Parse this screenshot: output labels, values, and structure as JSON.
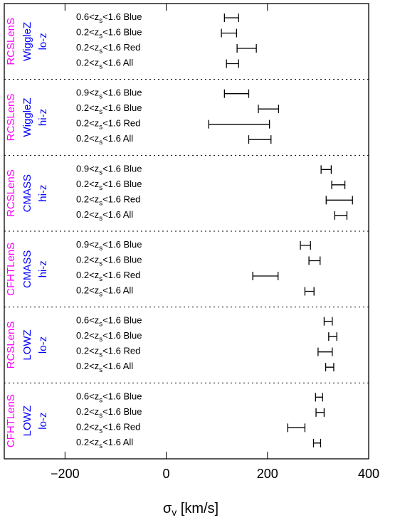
{
  "chart_data": {
    "type": "errorbar",
    "xlim": [
      -320,
      400
    ],
    "xticks": [
      {
        "value": -200,
        "label": "−200"
      },
      0,
      200,
      400
    ],
    "xlabel": {
      "symbol": "σ",
      "sub": "v",
      "rest": " [km/s]"
    },
    "group_colors": [
      "#ff00ff",
      "#0000ff",
      "#0000ff"
    ],
    "color": "#000000",
    "panels": [
      {
        "group": [
          "RCSLenS",
          "WiggleZ",
          "lo-z"
        ],
        "categories": [
          {
            "lead": "0.6<z",
            "sub": "s",
            "rest": "<1.6 Blue"
          },
          {
            "lead": "0.2<z",
            "sub": "s",
            "rest": "<1.6 Blue"
          },
          {
            "lead": "0.2<z",
            "sub": "s",
            "rest": "<1.6 Red"
          },
          {
            "lead": "0.2<z",
            "sub": "s",
            "rest": "<1.6 All"
          }
        ],
        "values": [
          129,
          124,
          159,
          131
        ],
        "errors": [
          14,
          15,
          19,
          12
        ]
      },
      {
        "group": [
          "RCSLenS",
          "WiggleZ",
          "hi-z"
        ],
        "categories": [
          {
            "lead": "0.9<z",
            "sub": "s",
            "rest": "<1.6 Blue"
          },
          {
            "lead": "0.2<z",
            "sub": "s",
            "rest": "<1.6 Blue"
          },
          {
            "lead": "0.2<z",
            "sub": "s",
            "rest": "<1.6 Red"
          },
          {
            "lead": "0.2<z",
            "sub": "s",
            "rest": "<1.6 All"
          }
        ],
        "values": [
          139,
          202,
          144,
          185
        ],
        "errors": [
          24,
          20,
          60,
          22
        ]
      },
      {
        "group": [
          "RCSLenS",
          "CMASS",
          "hi-z"
        ],
        "categories": [
          {
            "lead": "0.9<z",
            "sub": "s",
            "rest": "<1.6 Blue"
          },
          {
            "lead": "0.2<z",
            "sub": "s",
            "rest": "<1.6 Blue"
          },
          {
            "lead": "0.2<z",
            "sub": "s",
            "rest": "<1.6 Red"
          },
          {
            "lead": "0.2<z",
            "sub": "s",
            "rest": "<1.6 All"
          }
        ],
        "values": [
          316,
          340,
          342,
          345
        ],
        "errors": [
          10,
          13,
          26,
          12
        ]
      },
      {
        "group": [
          "CFHTLenS",
          "CMASS",
          "hi-z"
        ],
        "categories": [
          {
            "lead": "0.9<z",
            "sub": "s",
            "rest": "<1.6 Blue"
          },
          {
            "lead": "0.2<z",
            "sub": "s",
            "rest": "<1.6 Blue"
          },
          {
            "lead": "0.2<z",
            "sub": "s",
            "rest": "<1.6 Red"
          },
          {
            "lead": "0.2<z",
            "sub": "s",
            "rest": "<1.6 All"
          }
        ],
        "values": [
          275,
          293,
          196,
          283
        ],
        "errors": [
          10,
          11,
          25,
          9
        ]
      },
      {
        "group": [
          "RCSLenS",
          "LOWZ",
          "lo-z"
        ],
        "categories": [
          {
            "lead": "0.6<z",
            "sub": "s",
            "rest": "<1.6 Blue"
          },
          {
            "lead": "0.2<z",
            "sub": "s",
            "rest": "<1.6 Blue"
          },
          {
            "lead": "0.2<z",
            "sub": "s",
            "rest": "<1.6 Red"
          },
          {
            "lead": "0.2<z",
            "sub": "s",
            "rest": "<1.6 All"
          }
        ],
        "values": [
          320,
          329,
          314,
          323
        ],
        "errors": [
          8,
          8,
          14,
          8
        ]
      },
      {
        "group": [
          "CFHTLenS",
          "LOWZ",
          "lo-z"
        ],
        "categories": [
          {
            "lead": "0.6<z",
            "sub": "s",
            "rest": "<1.6 Blue"
          },
          {
            "lead": "0.2<z",
            "sub": "s",
            "rest": "<1.6 Blue"
          },
          {
            "lead": "0.2<z",
            "sub": "s",
            "rest": "<1.6 Red"
          },
          {
            "lead": "0.2<z",
            "sub": "s",
            "rest": "<1.6 All"
          }
        ],
        "values": [
          302,
          304,
          257,
          298
        ],
        "errors": [
          7,
          8,
          17,
          7
        ]
      }
    ]
  }
}
